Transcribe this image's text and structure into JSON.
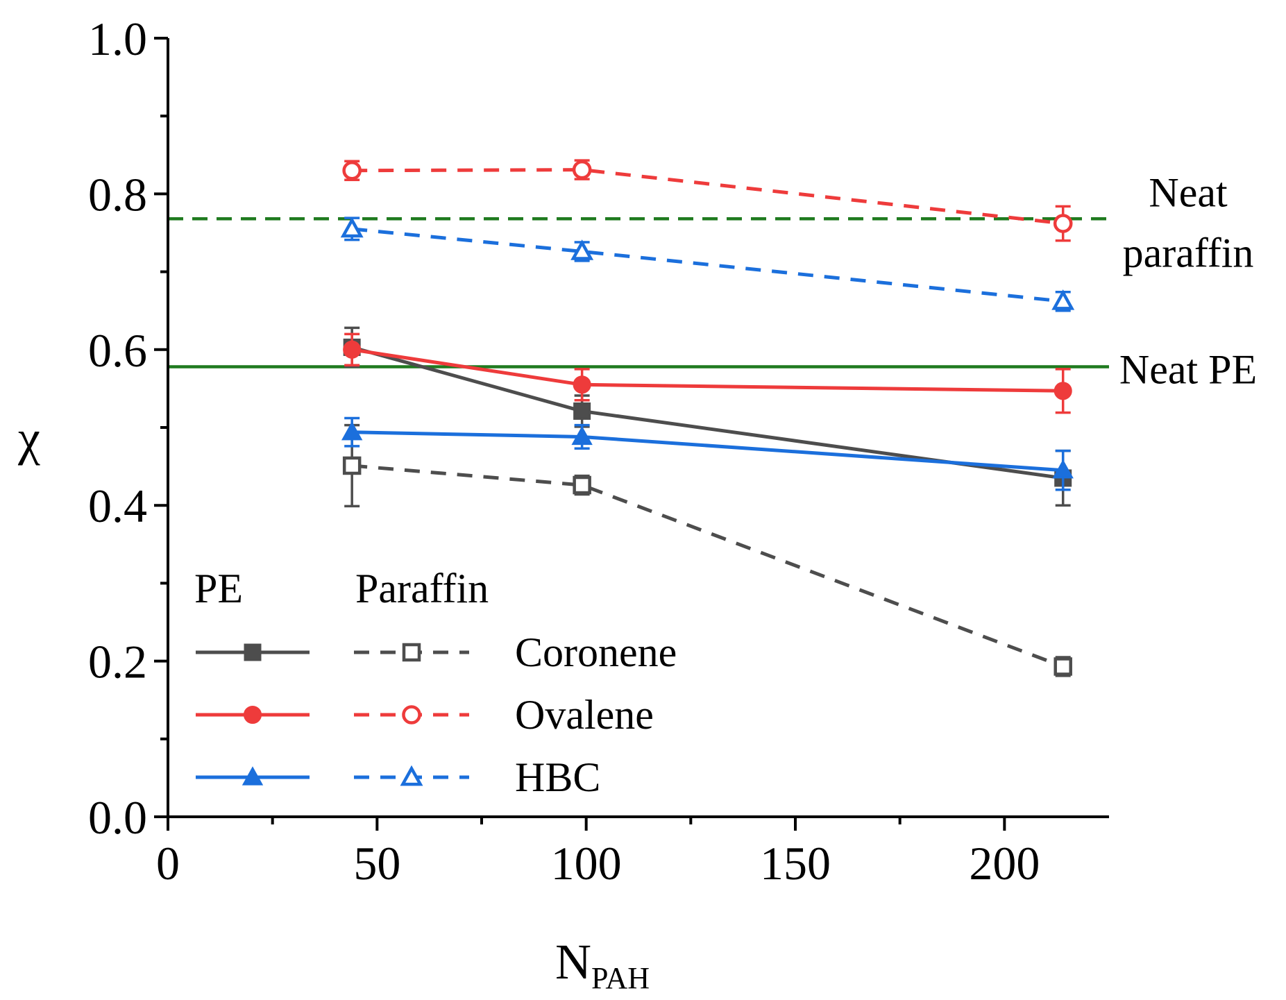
{
  "chart_data": {
    "type": "line",
    "title": "",
    "xlabel_main": "N",
    "xlabel_sub": "PAH",
    "ylabel": "χ",
    "xlim": [
      0,
      225
    ],
    "ylim": [
      0.0,
      1.0
    ],
    "x_ticks": [
      0,
      50,
      100,
      150,
      200
    ],
    "x_tick_labels": [
      "0",
      "50",
      "100",
      "150",
      "200"
    ],
    "y_ticks": [
      0.0,
      0.2,
      0.4,
      0.6,
      0.8,
      1.0
    ],
    "y_tick_labels": [
      "0.0",
      "0.2",
      "0.4",
      "0.6",
      "0.8",
      "1.0"
    ],
    "x": [
      44,
      99,
      214
    ],
    "series": [
      {
        "name": "PE Coronene",
        "group": "PE",
        "pah": "Coronene",
        "color": "#4d4d4d",
        "dash": "solid",
        "marker": "square",
        "filled": true,
        "values": [
          0.603,
          0.521,
          0.435
        ],
        "errors": [
          0.025,
          0.02,
          0.035
        ]
      },
      {
        "name": "PE Ovalene",
        "group": "PE",
        "pah": "Ovalene",
        "color": "#ee3b3b",
        "dash": "solid",
        "marker": "circle",
        "filled": true,
        "values": [
          0.6,
          0.555,
          0.547
        ],
        "errors": [
          0.02,
          0.02,
          0.028
        ]
      },
      {
        "name": "PE HBC",
        "group": "PE",
        "pah": "HBC",
        "color": "#1b6fdc",
        "dash": "solid",
        "marker": "triangle",
        "filled": true,
        "values": [
          0.494,
          0.488,
          0.445
        ],
        "errors": [
          0.018,
          0.015,
          0.025
        ]
      },
      {
        "name": "Paraffin Coronene",
        "group": "Paraffin",
        "pah": "Coronene",
        "color": "#4d4d4d",
        "dash": "dashed",
        "marker": "square",
        "filled": false,
        "values": [
          0.451,
          0.426,
          0.193
        ],
        "errors": [
          0.052,
          0.012,
          0.012
        ]
      },
      {
        "name": "Paraffin Ovalene",
        "group": "Paraffin",
        "pah": "Ovalene",
        "color": "#ee3b3b",
        "dash": "dashed",
        "marker": "circle",
        "filled": false,
        "values": [
          0.83,
          0.831,
          0.762
        ],
        "errors": [
          0.012,
          0.012,
          0.022
        ]
      },
      {
        "name": "Paraffin HBC",
        "group": "Paraffin",
        "pah": "HBC",
        "color": "#1b6fdc",
        "dash": "dashed",
        "marker": "triangle",
        "filled": false,
        "values": [
          0.755,
          0.726,
          0.662
        ],
        "errors": [
          0.014,
          0.012,
          0.012
        ]
      }
    ],
    "reference_lines": [
      {
        "name": "Neat paraffin",
        "lines": [
          "Neat",
          "paraffin"
        ],
        "value": 0.768,
        "color": "#1f7a1f",
        "dash": "dashed"
      },
      {
        "name": "Neat PE",
        "lines": [
          "Neat PE"
        ],
        "value": 0.578,
        "color": "#1f7a1f",
        "dash": "solid"
      }
    ],
    "legend": {
      "placement": "bottom-left",
      "column_headers": [
        "PE",
        "Paraffin"
      ],
      "rows": [
        "Coronene",
        "Ovalene",
        "HBC"
      ]
    }
  }
}
